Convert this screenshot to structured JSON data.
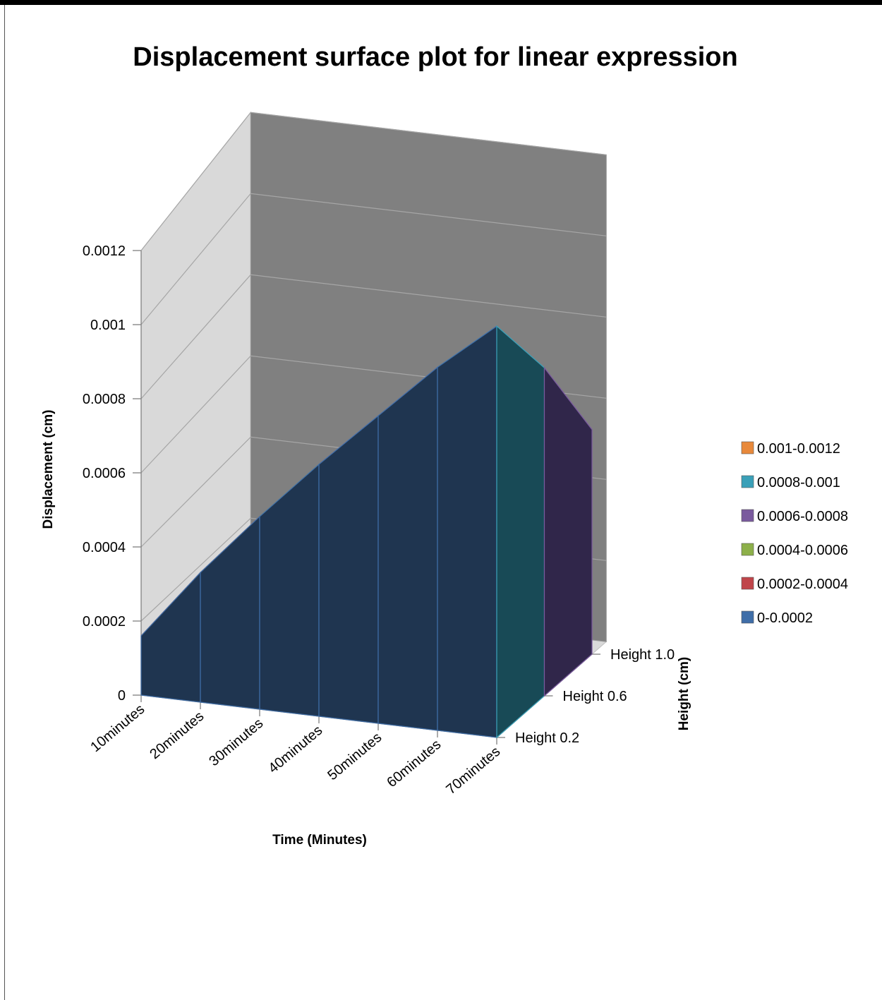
{
  "chart_data": {
    "type": "surface",
    "title": "Displacement surface plot for linear expression",
    "xlabel": "Time (Minutes)",
    "ylabel": "Displacement (cm)",
    "zlabel": "Height (cm)",
    "x_categories": [
      "10minutes",
      "20minutes",
      "30minutes",
      "40minutes",
      "50minutes",
      "60minutes",
      "70minutes"
    ],
    "z_categories": [
      "Height 0.2",
      "Height 0.6",
      "Height 1.0"
    ],
    "y_ticks": [
      "0",
      "0.0002",
      "0.0004",
      "0.0006",
      "0.0008",
      "0.001",
      "0.0012"
    ],
    "ylim": [
      0,
      0.0012
    ],
    "series": [
      {
        "name": "Height 0.2",
        "values": [
          0.00016,
          0.00035,
          0.00052,
          0.00068,
          0.00083,
          0.00098,
          0.00111
        ]
      },
      {
        "name": "Height 0.6",
        "values": [
          0.00013,
          0.00027,
          0.0004,
          0.00052,
          0.00063,
          0.00074,
          0.00085
        ]
      },
      {
        "name": "Height 1.0",
        "values": [
          0.0001,
          0.00019,
          0.00027,
          0.00035,
          0.00042,
          0.00049,
          0.00056
        ]
      }
    ],
    "legend": {
      "position": "right",
      "items": [
        {
          "label": "0.001-0.0012",
          "color": "#e8893b"
        },
        {
          "label": "0.0008-0.001",
          "color": "#3aa0b8"
        },
        {
          "label": "0.0006-0.0008",
          "color": "#7a5a9e"
        },
        {
          "label": "0.0004-0.0006",
          "color": "#8db04a"
        },
        {
          "label": "0.0002-0.0004",
          "color": "#c0454a"
        },
        {
          "label": "0-0.0002",
          "color": "#3f6ea8"
        }
      ]
    },
    "surface_colors": [
      {
        "fill": "#1f3550",
        "line": "#3f6ea8"
      },
      {
        "fill": "#4d1c1c",
        "line": "#c0454a"
      },
      {
        "fill": "#3c4d1e",
        "line": "#8db04a"
      },
      {
        "fill": "#30264a",
        "line": "#7a5a9e"
      },
      {
        "fill": "#184a56",
        "line": "#3aa0b8"
      },
      {
        "fill": "#75401a",
        "line": "#e8893b"
      }
    ],
    "walls": {
      "back": "#808080",
      "side": "#d9d9d9",
      "floor": "#d9d9d9",
      "gridline": "#a6a6a6"
    }
  }
}
